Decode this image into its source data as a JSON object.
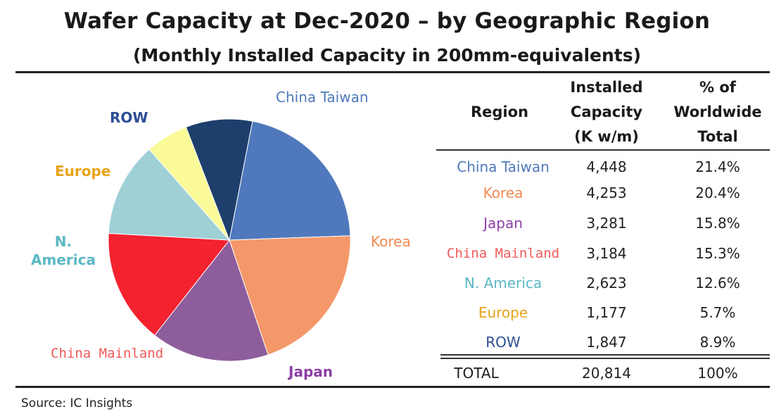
{
  "chart_data": {
    "type": "pie",
    "title": "Wafer Capacity at Dec-2020 – by Geographic Region",
    "subtitle": "(Monthly Installed Capacity in 200mm-equivalents)",
    "slices": [
      {
        "label": "China Taiwan",
        "value": 21.4,
        "color": "#4f79bc"
      },
      {
        "label": "Korea",
        "value": 20.4,
        "color": "#f59869"
      },
      {
        "label": "Japan",
        "value": 15.8,
        "color": "#8e5d9c"
      },
      {
        "label": "China Mainland",
        "value": 15.3,
        "color": "#f4212f"
      },
      {
        "label": "N. America",
        "value": 12.6,
        "color": "#9fd0d6"
      },
      {
        "label": "Europe",
        "value": 5.7,
        "color": "#fafa98"
      },
      {
        "label": "ROW",
        "value": 8.9,
        "color": "#1e3e6b"
      }
    ],
    "pie_labels": {
      "taiwan": "China Taiwan",
      "korea": "Korea",
      "japan": "Japan",
      "mainland": "China Mainland",
      "namerica_line1": "N.",
      "namerica_line2": "America",
      "europe": "Europe",
      "row": "ROW"
    },
    "label_colors": {
      "taiwan": "#4f79bc",
      "korea": "#f08a52",
      "japan": "#8e3fa8",
      "mainland": "#f05a5a",
      "namerica": "#5bb7c4",
      "europe": "#e8a318",
      "row": "#2d4e96"
    }
  },
  "table": {
    "headers": {
      "region": "Region",
      "cap_line1": "Installed",
      "cap_line2": "Capacity",
      "cap_line3": "(K w/m)",
      "pct_line1": "% of",
      "pct_line2": "Worldwide",
      "pct_line3": "Total"
    },
    "rows": [
      {
        "region": "China Taiwan",
        "capacity": "4,448",
        "pct": "21.4%",
        "color": "#4f79bc"
      },
      {
        "region": "Korea",
        "capacity": "4,253",
        "pct": "20.4%",
        "color": "#f08a52"
      },
      {
        "region": "Japan",
        "capacity": "3,281",
        "pct": "15.8%",
        "color": "#8e3fa8"
      },
      {
        "region": "China Mainland",
        "capacity": "3,184",
        "pct": "15.3%",
        "color": "#f05a5a"
      },
      {
        "region": "N. America",
        "capacity": "2,623",
        "pct": "12.6%",
        "color": "#5bb7c4"
      },
      {
        "region": "Europe",
        "capacity": "1,177",
        "pct": "5.7%",
        "color": "#e8a318"
      },
      {
        "region": "ROW",
        "capacity": "1,847",
        "pct": "8.9%",
        "color": "#2d4e96"
      }
    ],
    "total": {
      "region": "TOTAL",
      "capacity": "20,814",
      "pct": "100%"
    }
  },
  "source": "Source:  IC Insights"
}
